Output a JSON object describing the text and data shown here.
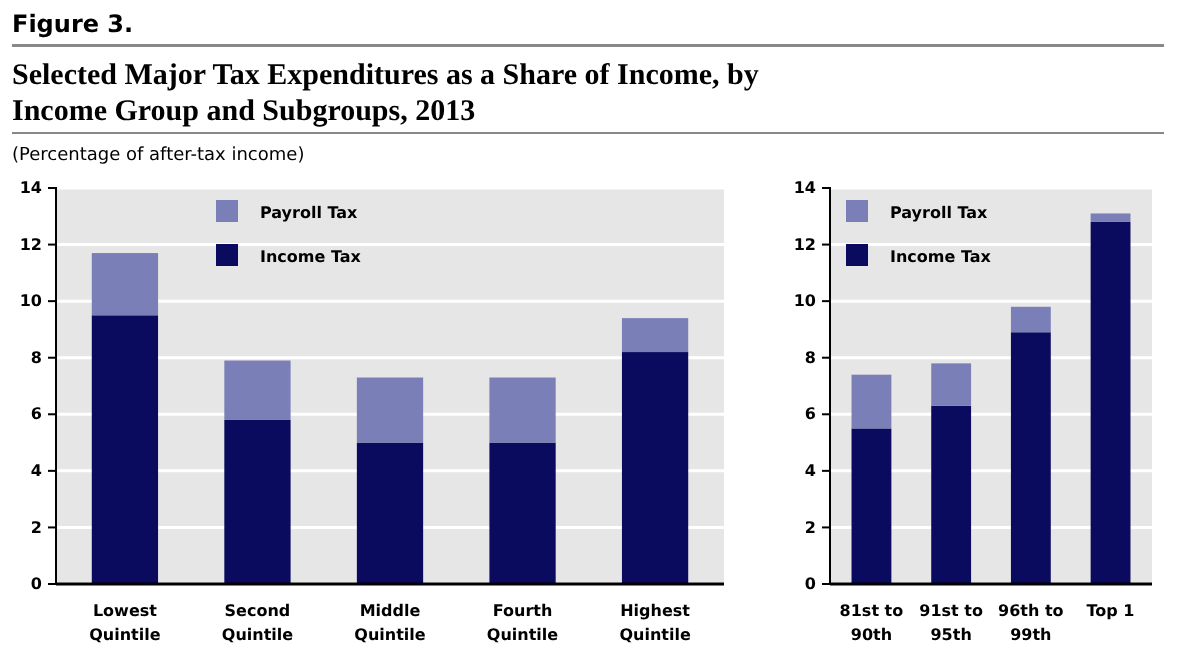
{
  "chart_data": [
    {
      "type": "bar",
      "stacked": true,
      "title": "Selected Major Tax Expenditures as a Share of Income, by Income Group and Subgroups, 2013",
      "subtitle": "(Percentage of after-tax income)",
      "annotations": [
        "Figure 3."
      ],
      "categories": [
        "Lowest Quintile",
        "Second Quintile",
        "Middle Quintile",
        "Fourth Quintile",
        "Highest Quintile"
      ],
      "series": [
        {
          "name": "Income Tax",
          "color": "#0a0a5e",
          "values": [
            9.5,
            5.8,
            5.0,
            5.0,
            8.2
          ]
        },
        {
          "name": "Payroll Tax",
          "color": "#7a7fb8",
          "values": [
            2.2,
            2.1,
            2.3,
            2.3,
            1.2
          ]
        }
      ],
      "ylim": [
        0,
        14
      ],
      "yticks": [
        0,
        2,
        4,
        6,
        8,
        10,
        12,
        14
      ],
      "grid": "y",
      "legend": "top left"
    },
    {
      "type": "bar",
      "stacked": true,
      "categories": [
        "81st to 90th",
        "91st to 95th",
        "96th to 99th",
        "Top 1"
      ],
      "series": [
        {
          "name": "Income Tax",
          "color": "#0a0a5e",
          "values": [
            5.5,
            6.3,
            8.9,
            12.8
          ]
        },
        {
          "name": "Payroll Tax",
          "color": "#7a7fb8",
          "values": [
            1.9,
            1.5,
            0.9,
            0.3
          ]
        }
      ],
      "ylim": [
        0,
        14
      ],
      "yticks": [
        0,
        2,
        4,
        6,
        8,
        10,
        12,
        14
      ],
      "grid": "y",
      "legend": "top left"
    }
  ]
}
